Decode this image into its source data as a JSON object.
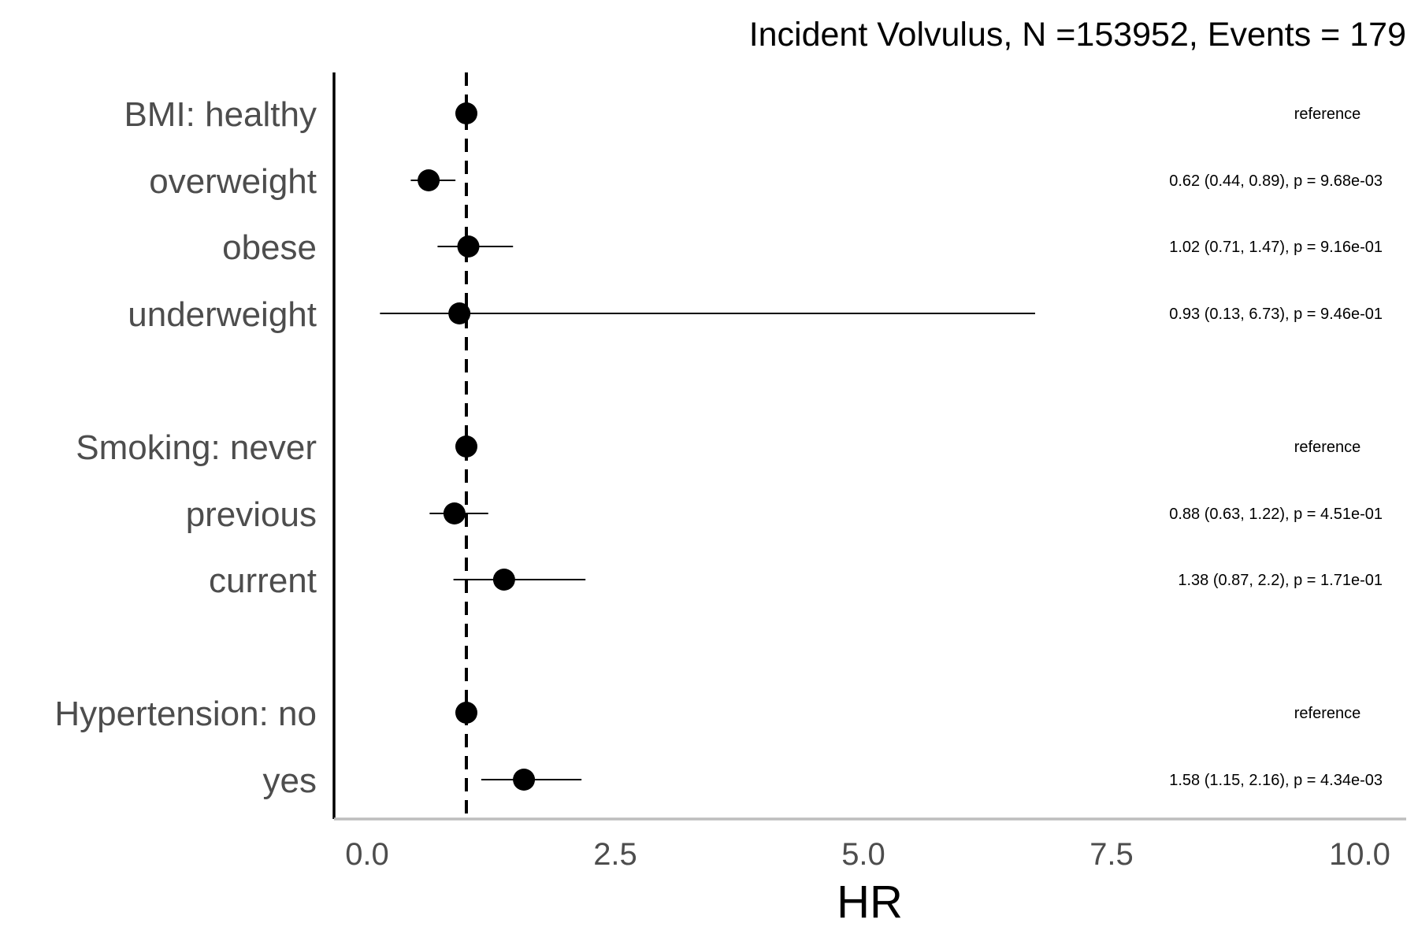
{
  "chart_data": {
    "type": "forest",
    "title": "Incident Volvulus, N =153952, Events = 179",
    "xlabel": "HR",
    "xlim": [
      -0.25,
      10.2
    ],
    "xticks": [
      0,
      2.5,
      5,
      7.5,
      10
    ],
    "xtick_labels": [
      "0.0",
      "2.5",
      "5.0",
      "7.5",
      "10.0"
    ],
    "reference_line": 1,
    "grid": false,
    "rows": [
      {
        "label": "BMI: healthy",
        "hr": 1.0,
        "lower": null,
        "upper": null,
        "annotation": "reference"
      },
      {
        "label": "overweight",
        "hr": 0.62,
        "lower": 0.44,
        "upper": 0.89,
        "annotation": "0.62 (0.44, 0.89), p = 9.68e-03"
      },
      {
        "label": "obese",
        "hr": 1.02,
        "lower": 0.71,
        "upper": 1.47,
        "annotation": "1.02 (0.71, 1.47), p = 9.16e-01"
      },
      {
        "label": "underweight",
        "hr": 0.93,
        "lower": 0.13,
        "upper": 6.73,
        "annotation": "0.93 (0.13, 6.73), p = 9.46e-01"
      },
      {
        "label": "Smoking: never",
        "hr": 1.0,
        "lower": null,
        "upper": null,
        "annotation": "reference"
      },
      {
        "label": "previous",
        "hr": 0.88,
        "lower": 0.63,
        "upper": 1.22,
        "annotation": "0.88 (0.63, 1.22), p = 4.51e-01"
      },
      {
        "label": "current",
        "hr": 1.38,
        "lower": 0.87,
        "upper": 2.2,
        "annotation": "1.38 (0.87, 2.2), p = 1.71e-01"
      },
      {
        "label": "Hypertension: no",
        "hr": 1.0,
        "lower": null,
        "upper": null,
        "annotation": "reference"
      },
      {
        "label": "yes",
        "hr": 1.58,
        "lower": 1.15,
        "upper": 2.16,
        "annotation": "1.58 (1.15, 2.16), p = 4.34e-03"
      }
    ]
  }
}
